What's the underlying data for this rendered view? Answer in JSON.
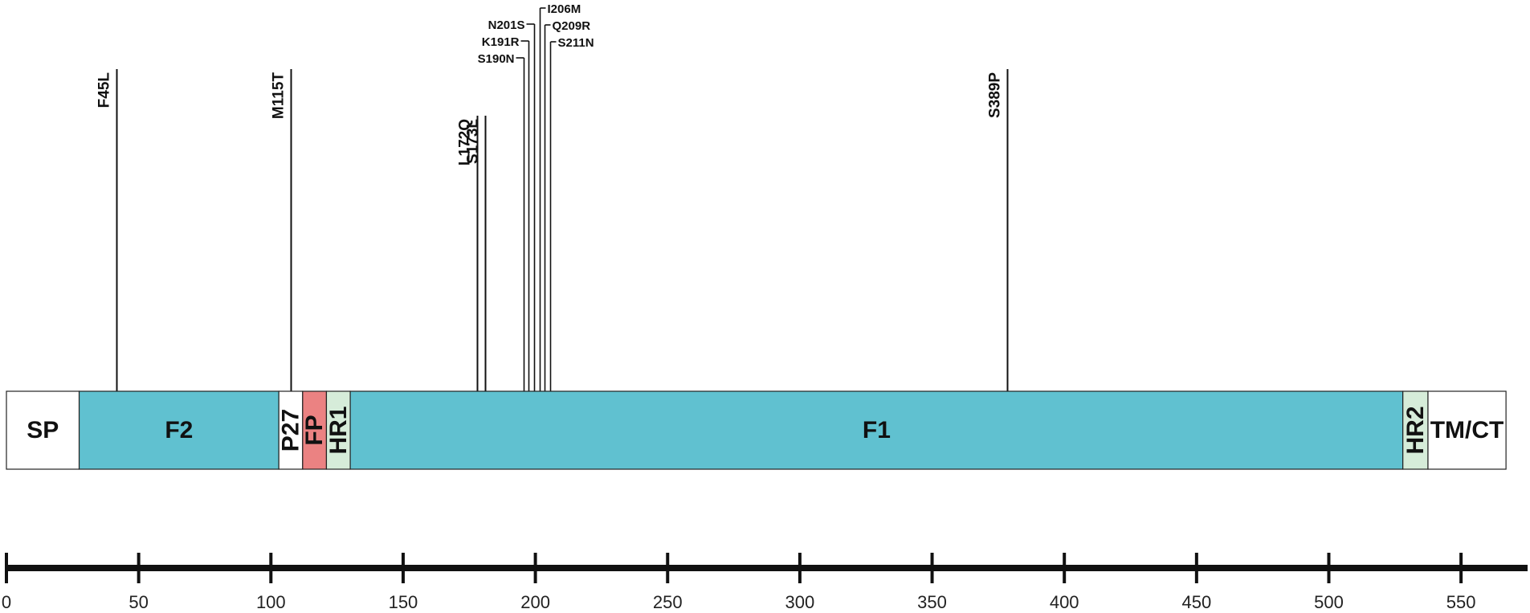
{
  "scale": {
    "min": 0,
    "max": 570,
    "ticks": [
      0,
      50,
      100,
      150,
      200,
      250,
      300,
      350,
      400,
      450,
      500,
      550
    ]
  },
  "colors": {
    "f_domain": "#60c1d0",
    "fp": "#eb8282",
    "hr": "#d6ecd9",
    "plain": "#ffffff",
    "line": "#111111"
  },
  "domains": [
    {
      "id": "sp",
      "label": "SP",
      "start": 0,
      "end": 27.5,
      "color_key": "plain",
      "vertical": false
    },
    {
      "id": "f2",
      "label": "F2",
      "start": 27.5,
      "end": 103,
      "color_key": "f_domain",
      "vertical": false
    },
    {
      "id": "p27",
      "label": "P27",
      "start": 103,
      "end": 112,
      "color_key": "plain",
      "vertical": true
    },
    {
      "id": "fp",
      "label": "FP",
      "start": 112,
      "end": 121,
      "color_key": "fp",
      "vertical": true
    },
    {
      "id": "hr1",
      "label": "HR1",
      "start": 121,
      "end": 130,
      "color_key": "hr",
      "vertical": true
    },
    {
      "id": "f1",
      "label": "F1",
      "start": 130,
      "end": 528,
      "color_key": "f_domain",
      "vertical": false
    },
    {
      "id": "hr2",
      "label": "HR2",
      "start": 528,
      "end": 537.5,
      "color_key": "hr",
      "vertical": true
    },
    {
      "id": "tmct",
      "label": "TM/CT",
      "start": 537.5,
      "end": 567,
      "color_key": "plain",
      "vertical": false
    }
  ],
  "mutations": [
    {
      "label": "F45L",
      "position": 41.5,
      "style": "vertical-tall"
    },
    {
      "label": "M115T",
      "position": 107.5,
      "style": "vertical-tall"
    },
    {
      "label": "L172Q",
      "position": 178,
      "style": "vertical-short"
    },
    {
      "label": "S173L",
      "position": 181,
      "style": "vertical-short"
    },
    {
      "label": "S190N",
      "position": 195.5,
      "style": "side-left"
    },
    {
      "label": "K191R",
      "position": 197.5,
      "style": "side-left"
    },
    {
      "label": "N201S",
      "position": 199.5,
      "style": "side-left"
    },
    {
      "label": "I206M",
      "position": 201.5,
      "style": "side-right"
    },
    {
      "label": "Q209R",
      "position": 203.5,
      "style": "side-right"
    },
    {
      "label": "S211N",
      "position": 205.5,
      "style": "side-right"
    },
    {
      "label": "S389P",
      "position": 378.5,
      "style": "vertical-tall"
    }
  ]
}
